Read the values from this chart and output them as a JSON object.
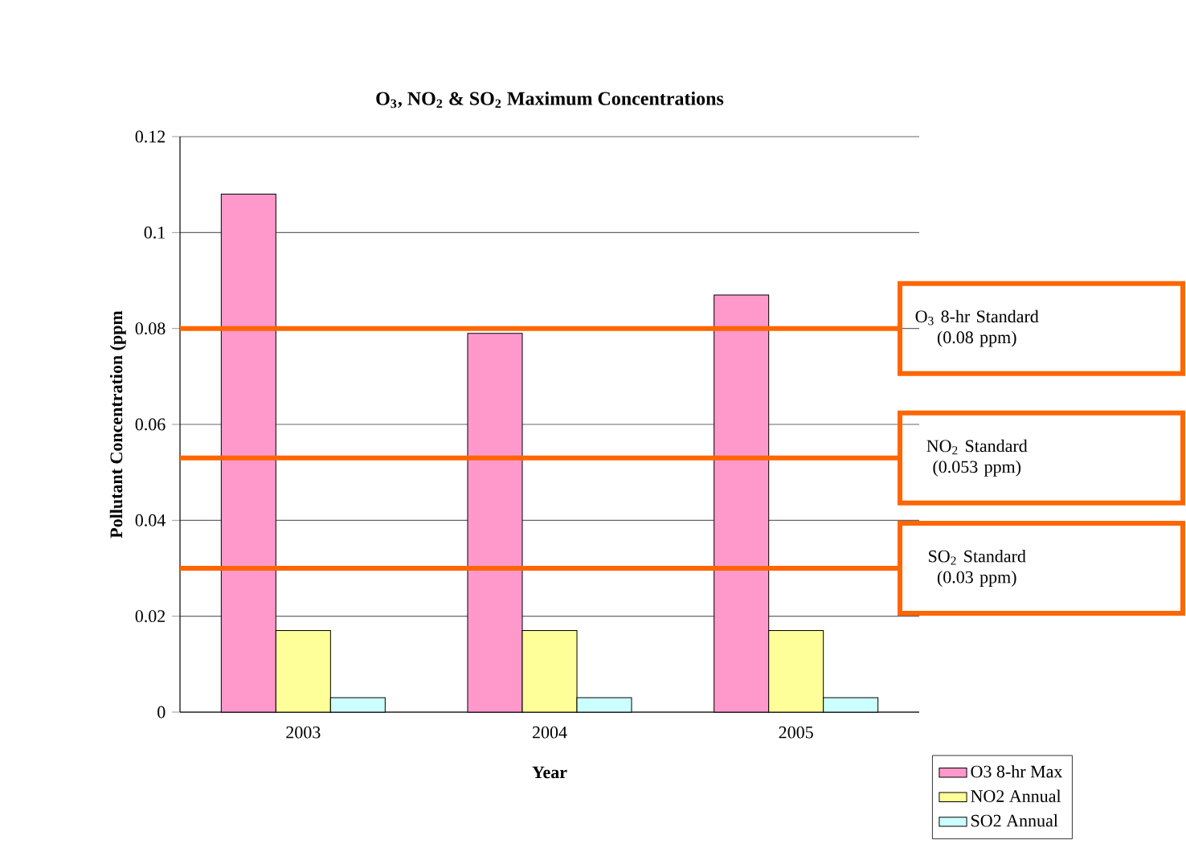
{
  "chart_data": {
    "type": "bar",
    "title": "O$_{3}$, NO$_{2}$ & SO$_{2}$ Maximum Concentrations",
    "xlabel": "Year",
    "ylabel": "Pollutant Concentration (ppm",
    "categories": [
      "2003",
      "2004",
      "2005"
    ],
    "series": [
      {
        "name": "O3 8-hr Max",
        "color": "#ff99cc",
        "values": [
          0.108,
          0.079,
          0.087
        ]
      },
      {
        "name": "NO2 Annual",
        "color": "#ffff99",
        "values": [
          0.017,
          0.017,
          0.017
        ]
      },
      {
        "name": "SO2 Annual",
        "color": "#ccffff",
        "values": [
          0.003,
          0.003,
          0.003
        ]
      }
    ],
    "ylim": [
      0,
      0.12
    ],
    "yticks": [
      0,
      0.02,
      0.04,
      0.06,
      0.08,
      0.1,
      0.12
    ],
    "grid": "y",
    "legend": "bottom right",
    "ref_lines": [
      {
        "axis": "y",
        "value": 0.08,
        "label": "O$_{3}$ 8-hr Standard (0.08 ppm)",
        "color": "#ff6600"
      },
      {
        "axis": "y",
        "value": 0.053,
        "label": "NO$_{2}$ Standard (0.053 ppm)",
        "color": "#ff6600"
      },
      {
        "axis": "y",
        "value": 0.03,
        "label": "SO$_{2}$ Standard (0.03 ppm)",
        "color": "#ff6600"
      }
    ]
  }
}
